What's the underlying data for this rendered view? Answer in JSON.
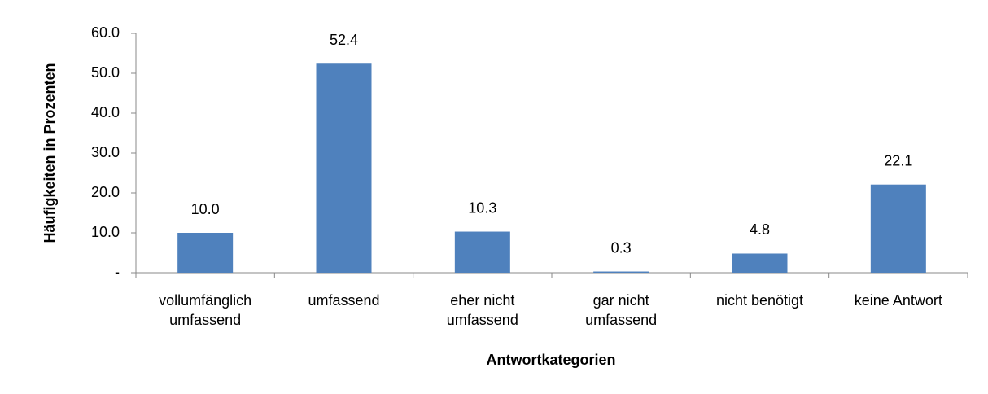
{
  "chart_data": {
    "type": "bar",
    "categories": [
      "vollumfänglich\numfassend",
      "umfassend",
      "eher nicht\numfassend",
      "gar nicht\numfassend",
      "nicht benötigt",
      "keine Antwort"
    ],
    "values": [
      10.0,
      52.4,
      10.3,
      0.3,
      4.8,
      22.1
    ],
    "value_labels": [
      "10.0",
      "52.4",
      "10.3",
      "0.3",
      "4.8",
      "22.1"
    ],
    "color": "#4f81bd",
    "ylim": [
      0,
      60
    ],
    "yticks": [
      {
        "value": 0,
        "label": "-"
      },
      {
        "value": 10,
        "label": "10.0"
      },
      {
        "value": 20,
        "label": "20.0"
      },
      {
        "value": 30,
        "label": "30.0"
      },
      {
        "value": 40,
        "label": "40.0"
      },
      {
        "value": 50,
        "label": "50.0"
      },
      {
        "value": 60,
        "label": "60.0"
      }
    ],
    "x_label": "Antwortkategorien",
    "y_label": "Häufigkeiten in Prozenten",
    "grid": false
  }
}
